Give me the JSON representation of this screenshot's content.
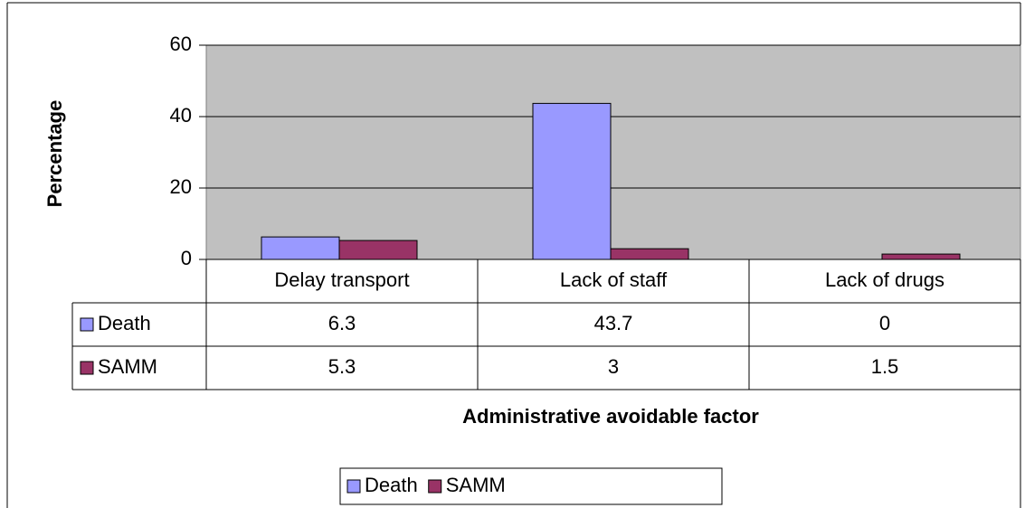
{
  "chart_data": {
    "type": "bar",
    "xlabel": "Administrative avoidable factor",
    "ylabel": "Percentage",
    "categories": [
      "Delay transport",
      "Lack of staff",
      "Lack of drugs"
    ],
    "series": [
      {
        "name": "Death",
        "color": "#9999ff",
        "values": [
          6.3,
          43.7,
          0
        ]
      },
      {
        "name": "SAMM",
        "color": "#993366",
        "values": [
          5.3,
          3,
          1.5
        ]
      }
    ],
    "ylim": [
      0,
      60
    ],
    "yticks": [
      0,
      20,
      40,
      60
    ],
    "grid": true,
    "data_table": true,
    "legend": "bottom"
  }
}
